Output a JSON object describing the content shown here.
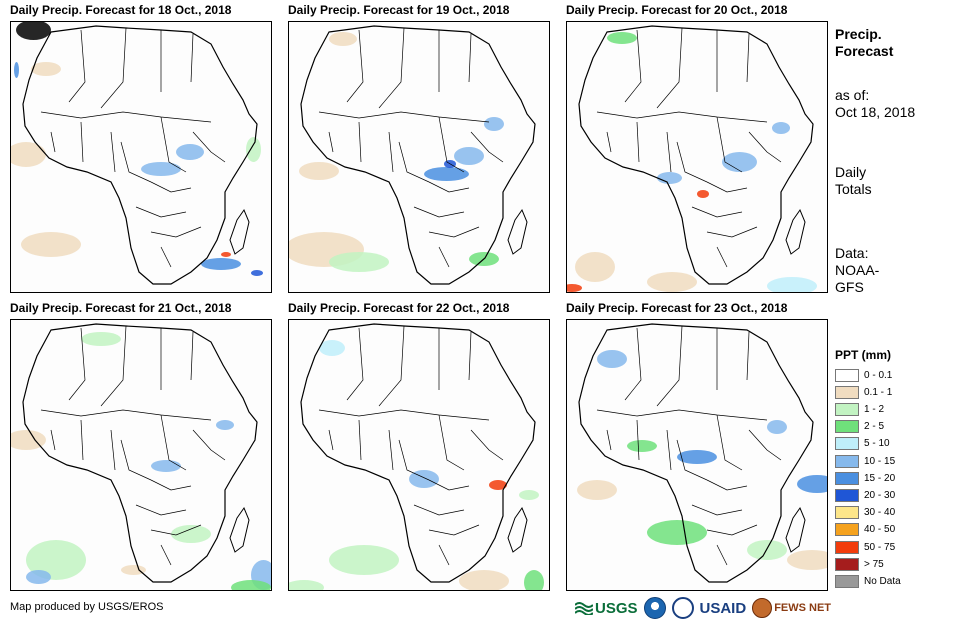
{
  "panels": [
    {
      "title": "Daily Precip. Forecast for 18 Oct., 2018",
      "day": "18"
    },
    {
      "title": "Daily Precip. Forecast for 19 Oct., 2018",
      "day": "19"
    },
    {
      "title": "Daily Precip. Forecast for 20 Oct., 2018",
      "day": "20"
    },
    {
      "title": "Daily Precip. Forecast for 21 Oct., 2018",
      "day": "21"
    },
    {
      "title": "Daily Precip. Forecast for 22 Oct., 2018",
      "day": "22"
    },
    {
      "title": "Daily Precip. Forecast for 23 Oct., 2018",
      "day": "23"
    }
  ],
  "sidebar": {
    "title_line1": "Precip.",
    "title_line2": "Forecast",
    "asof_line1": "as of:",
    "asof_line2": "Oct 18, 2018",
    "totals_line1": "Daily",
    "totals_line2": "Totals",
    "data_line1": "Data:",
    "data_line2": "NOAA-",
    "data_line3": "GFS"
  },
  "legend": {
    "title": "PPT (mm)",
    "items": [
      {
        "label": "0 - 0.1",
        "color": "#ffffff"
      },
      {
        "label": "0.1 - 1",
        "color": "#f0dcc0"
      },
      {
        "label": "1 - 2",
        "color": "#c2f3c2"
      },
      {
        "label": "2 - 5",
        "color": "#6fe07b"
      },
      {
        "label": "5 - 10",
        "color": "#bfeffa"
      },
      {
        "label": "10 - 15",
        "color": "#86b9ec"
      },
      {
        "label": "15 - 20",
        "color": "#4a8fe0"
      },
      {
        "label": "20 - 30",
        "color": "#1f56d6"
      },
      {
        "label": "30 - 40",
        "color": "#fde68a"
      },
      {
        "label": "40 - 50",
        "color": "#f5a21e"
      },
      {
        "label": "50 - 75",
        "color": "#f23c0c"
      },
      {
        "label": "> 75",
        "color": "#a51d1d"
      },
      {
        "label": "No Data",
        "color": "#999999"
      }
    ]
  },
  "footer": {
    "credit": "Map produced by USGS/EROS"
  },
  "logos": {
    "usgs": "USGS",
    "usaid": "USAID",
    "fews": "FEWS NET"
  }
}
